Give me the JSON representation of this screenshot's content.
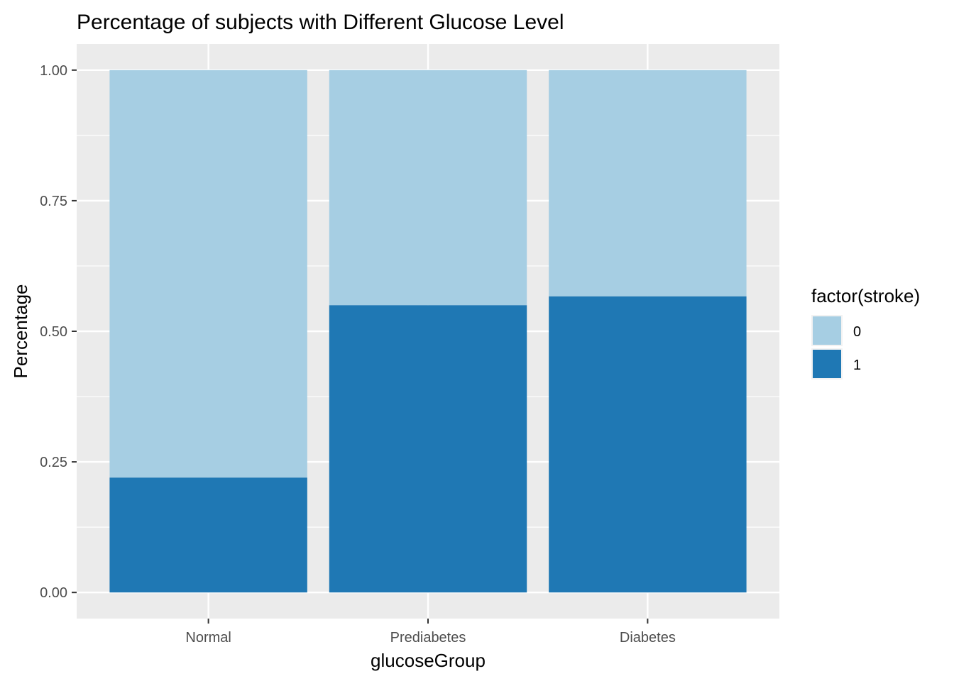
{
  "chart_data": {
    "type": "bar",
    "stacked": true,
    "title": "Percentage of subjects with Different Glucose Level",
    "xlabel": "glucoseGroup",
    "ylabel": "Percentage",
    "categories": [
      "Normal",
      "Prediabetes",
      "Diabetes"
    ],
    "series": [
      {
        "name": "0",
        "values": [
          0.78,
          0.45,
          0.433
        ],
        "color": "#a6cee3"
      },
      {
        "name": "1",
        "values": [
          0.22,
          0.55,
          0.567
        ],
        "color": "#1f78b4"
      }
    ],
    "ylim": [
      -0.05,
      1.05
    ],
    "yticks": [
      0,
      0.25,
      0.5,
      0.75,
      1
    ],
    "ytick_labels": [
      "0.00",
      "0.25",
      "0.50",
      "0.75",
      "1.00"
    ],
    "grid": true,
    "panel_background": "#ebebeb",
    "grid_color": "#ffffff",
    "legend": {
      "title": "factor(stroke)",
      "position": "right",
      "entries": [
        "0",
        "1"
      ]
    }
  }
}
